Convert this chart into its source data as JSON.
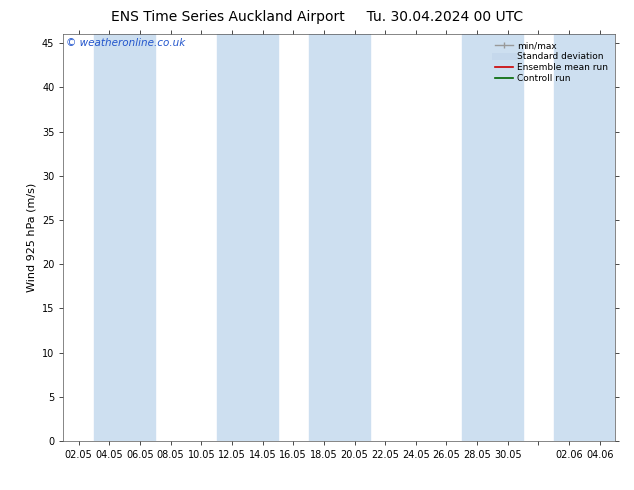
{
  "title": "ENS Time Series Auckland Airport     Tu. 30.04.2024 00 UTC",
  "ylabel": "Wind 925 hPa (m/s)",
  "watermark": "© weatheronline.co.uk",
  "ylim": [
    0,
    46
  ],
  "yticks": [
    0,
    5,
    10,
    15,
    20,
    25,
    30,
    35,
    40,
    45
  ],
  "xtick_labels": [
    "02.05",
    "04.05",
    "06.05",
    "08.05",
    "10.05",
    "12.05",
    "14.05",
    "16.05",
    "18.05",
    "20.05",
    "22.05",
    "24.05",
    "26.05",
    "28.05",
    "30.05",
    "",
    "02.06",
    "04.06"
  ],
  "band_color": "#cddff0",
  "background_color": "#ffffff",
  "legend_items": [
    {
      "label": "min/max",
      "color": "#999999"
    },
    {
      "label": "Standard deviation",
      "color": "#c5d8ec"
    },
    {
      "label": "Ensemble mean run",
      "color": "#cc0000"
    },
    {
      "label": "Controll run",
      "color": "#006600"
    }
  ],
  "title_fontsize": 10,
  "tick_fontsize": 7,
  "ylabel_fontsize": 8,
  "watermark_fontsize": 7.5
}
